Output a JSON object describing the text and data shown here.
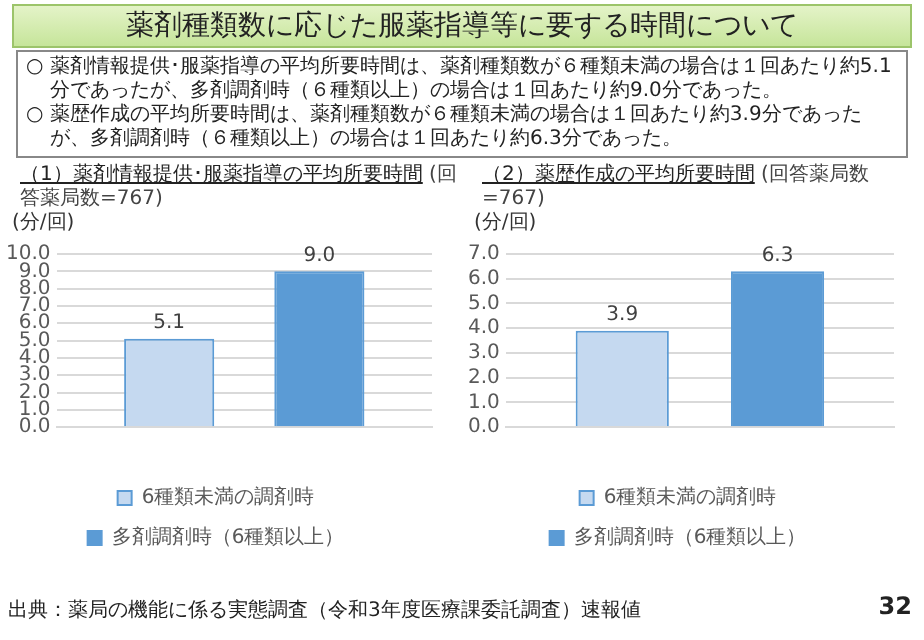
{
  "chart_data": [
    {
      "type": "bar",
      "title": "（1）薬剤情報提供･服薬指導の平均所要時間",
      "subtitle": "(回答薬局数=767)",
      "ylabel": "(分/回)",
      "annotations": [
        "薬剤種類数に応じた服薬指導等に要する時間について",
        "○ 薬剤情報提供･服薬指導の平均所要時間は、薬剤種類数が６種類未満の場合は１回あたり約5.1分であったが、多剤調剤時（６種類以上）の場合は１回あたり約9.0分であった。",
        "○ 薬歴作成の平均所要時間は、薬剤種類数が６種類未満の場合は１回あたり約3.9分であったが、多剤調剤時（６種類以上）の場合は１回あたり約6.3分であった。"
      ],
      "categories": [
        null
      ],
      "series": [
        {
          "name": "6種類未満の調剤時",
          "color": "#c5d9f0",
          "values": [
            5.1
          ],
          "value_labels": [
            "5.1"
          ]
        },
        {
          "name": "多剤調剤時（6種類以上）",
          "color": "#5b9bd5",
          "values": [
            9.0
          ],
          "value_labels": [
            "9.0"
          ]
        }
      ],
      "ylim": [
        0,
        10
      ],
      "yticks": [
        {
          "value": 0,
          "label": "0.0"
        },
        {
          "value": 1,
          "label": "1.0"
        },
        {
          "value": 2,
          "label": "2.0"
        },
        {
          "value": 3,
          "label": "3.0"
        },
        {
          "value": 4,
          "label": "4.0"
        },
        {
          "value": 5,
          "label": "5.0"
        },
        {
          "value": 6,
          "label": "6.0"
        },
        {
          "value": 7,
          "label": "7.0"
        },
        {
          "value": 8,
          "label": "8.0"
        },
        {
          "value": 9,
          "label": "9.0"
        },
        {
          "value": 10,
          "label": "10.0"
        }
      ],
      "grid": "y",
      "legend": "bottom"
    },
    {
      "type": "bar",
      "title": "（2）薬歴作成の平均所要時間",
      "subtitle": "(回答薬局数=767)",
      "ylabel": "(分/回)",
      "annotations": [
        "出典：薬局の機能に係る実態調査（令和3年度医療課委託調査）速報値",
        "32"
      ],
      "categories": [
        null
      ],
      "series": [
        {
          "name": "6種類未満の調剤時",
          "color": "#c5d9f0",
          "values": [
            3.9
          ],
          "value_labels": [
            "3.9"
          ]
        },
        {
          "name": "多剤調剤時（6種類以上）",
          "color": "#5b9bd5",
          "values": [
            6.3
          ],
          "value_labels": [
            "6.3"
          ]
        }
      ],
      "ylim": [
        0,
        7
      ],
      "yticks": [
        {
          "value": 0,
          "label": "0.0"
        },
        {
          "value": 1,
          "label": "1.0"
        },
        {
          "value": 2,
          "label": "2.0"
        },
        {
          "value": 3,
          "label": "3.0"
        },
        {
          "value": 4,
          "label": "4.0"
        },
        {
          "value": 5,
          "label": "5.0"
        },
        {
          "value": 6,
          "label": "6.0"
        },
        {
          "value": 7,
          "label": "7.0"
        }
      ],
      "grid": "y",
      "legend": "bottom"
    }
  ]
}
